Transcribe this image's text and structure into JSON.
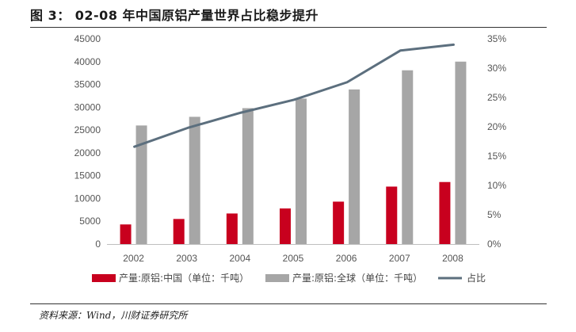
{
  "figure": {
    "title": "图 3：  02-08 年中国原铝产量世界占比稳步提升",
    "source": "资料来源：Wind，川财证券研究所"
  },
  "colors": {
    "china_bar": "#c8001e",
    "world_bar": "#a6a6a6",
    "share_line": "#5c6f7e",
    "tick_text": "#555555"
  },
  "chart_data": {
    "type": "bar",
    "title": "02-08 年中国原铝产量世界占比稳步提升",
    "categories": [
      "2002",
      "2003",
      "2004",
      "2005",
      "2006",
      "2007",
      "2008"
    ],
    "series": [
      {
        "name": "产量:原铝:中国（单位：千吨）",
        "type": "bar",
        "axis": "left",
        "values": [
          4300,
          5500,
          6700,
          7800,
          9300,
          12600,
          13600
        ]
      },
      {
        "name": "产量:原铝:全球（单位：千吨）",
        "type": "bar",
        "axis": "left",
        "values": [
          26000,
          27900,
          29800,
          31900,
          33900,
          38100,
          40000
        ]
      },
      {
        "name": "占比",
        "type": "line",
        "axis": "right",
        "values": [
          16.6,
          19.8,
          22.4,
          24.6,
          27.6,
          33.0,
          34.0
        ]
      }
    ],
    "y_left": {
      "min": 0,
      "max": 45000,
      "step": 5000,
      "tick_labels": [
        "0",
        "5000",
        "10000",
        "15000",
        "20000",
        "25000",
        "30000",
        "35000",
        "40000",
        "45000"
      ]
    },
    "y_right": {
      "min": 0,
      "max": 35,
      "step": 5,
      "tick_labels": [
        "0%",
        "5%",
        "10%",
        "15%",
        "20%",
        "25%",
        "30%",
        "35%"
      ]
    },
    "legend_position": "bottom",
    "grid": false
  }
}
